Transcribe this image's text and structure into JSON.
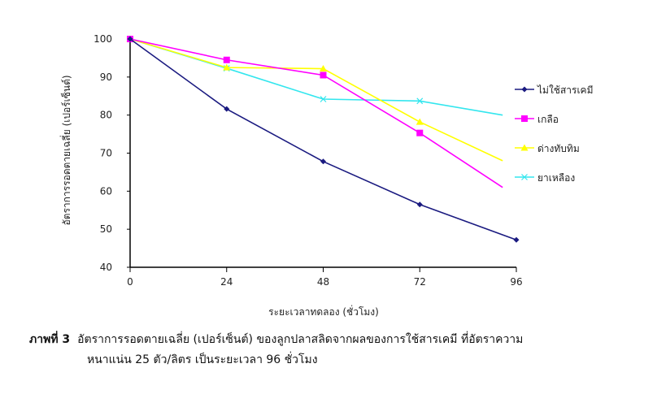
{
  "chart_data": {
    "type": "line",
    "xlabel": "ระยะเวลาทดลอง (ชั่วโมง)",
    "ylabel": "อัตราการรอดตายเฉลี่ย (เปอร์เซ็นต์)",
    "xlim": [
      0,
      96
    ],
    "ylim": [
      40,
      100
    ],
    "xticks": [
      0,
      24,
      48,
      72,
      96
    ],
    "yticks": [
      40,
      50,
      60,
      70,
      80,
      90,
      100
    ],
    "grid": false,
    "legend_position": "right",
    "series": [
      {
        "name": "ไม่ใช้สารเคมี",
        "color": "#1a1a80",
        "marker": "diamond",
        "x": [
          0,
          24,
          48,
          72,
          96
        ],
        "y": [
          100,
          81.6,
          67.8,
          56.5,
          47.2
        ]
      },
      {
        "name": "เกลือ",
        "color": "#ff00ff",
        "marker": "square",
        "x": [
          0,
          24,
          48,
          72,
          92.6
        ],
        "y": [
          100,
          94.5,
          90.5,
          75.3,
          61
        ]
      },
      {
        "name": "ด่างทับทิม",
        "color": "#ffff00",
        "marker": "triangle",
        "x": [
          0,
          24,
          48,
          72,
          92.6
        ],
        "y": [
          100,
          92.5,
          92.2,
          78.2,
          68
        ]
      },
      {
        "name": "ยาเหลือง",
        "color": "#33e6ee",
        "marker": "x",
        "x": [
          0,
          24,
          48,
          72,
          92.6
        ],
        "y": [
          100,
          92.3,
          84.2,
          83.7,
          80
        ]
      }
    ]
  },
  "caption": {
    "label": "ภาพที่ 3",
    "line1": "อัตราการรอดตายเฉลี่ย (เปอร์เซ็นต์) ของลูกปลาสลิดจากผลของการใช้สารเคมี ที่อัตราความ",
    "line2": "หนาแน่น 25 ตัว/ลิตร เป็นระยะเวลา 96 ชั่วโมง"
  }
}
